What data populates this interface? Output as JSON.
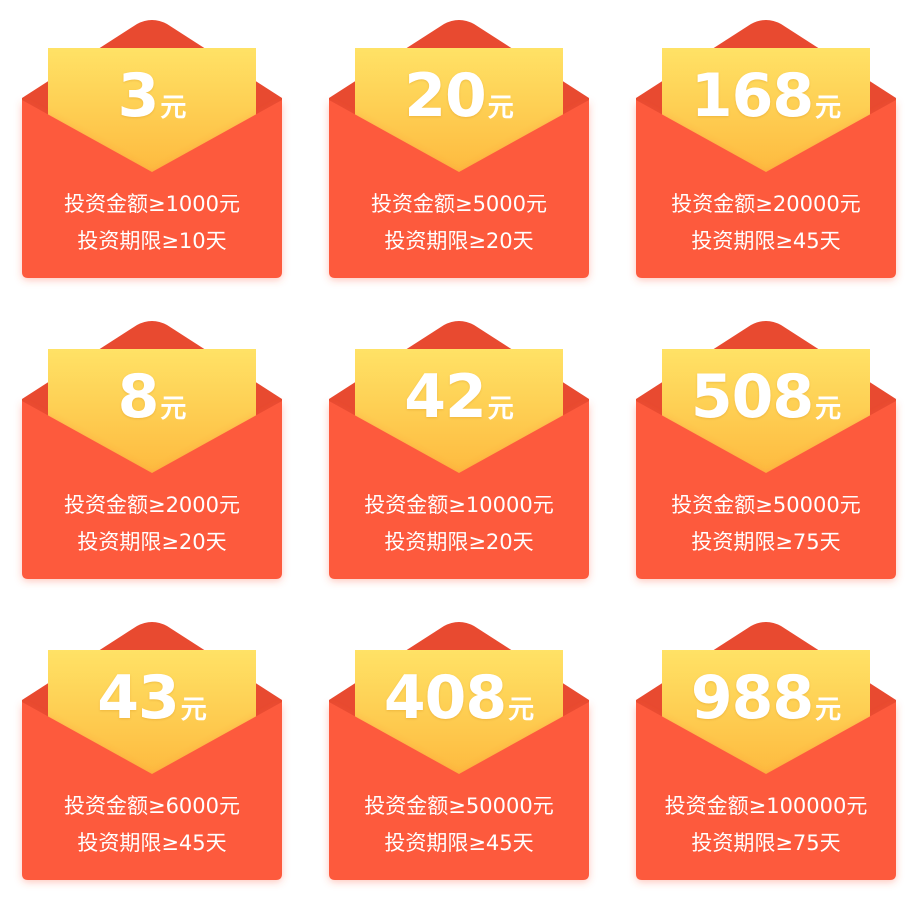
{
  "colors": {
    "envelope_body": "#FD5A3E",
    "envelope_flap_back": "#E84A30",
    "letter_top": "#FFE266",
    "letter_bottom": "#FDB53A",
    "text": "#FFFFFF"
  },
  "packets": [
    {
      "amount": "3",
      "unit": "元",
      "min_amount_label": "投资金额≥1000元",
      "min_term_label": "投资期限≥10天"
    },
    {
      "amount": "20",
      "unit": "元",
      "min_amount_label": "投资金额≥5000元",
      "min_term_label": "投资期限≥20天"
    },
    {
      "amount": "168",
      "unit": "元",
      "min_amount_label": "投资金额≥20000元",
      "min_term_label": "投资期限≥45天"
    },
    {
      "amount": "8",
      "unit": "元",
      "min_amount_label": "投资金额≥2000元",
      "min_term_label": "投资期限≥20天"
    },
    {
      "amount": "42",
      "unit": "元",
      "min_amount_label": "投资金额≥10000元",
      "min_term_label": "投资期限≥20天"
    },
    {
      "amount": "508",
      "unit": "元",
      "min_amount_label": "投资金额≥50000元",
      "min_term_label": "投资期限≥75天"
    },
    {
      "amount": "43",
      "unit": "元",
      "min_amount_label": "投资金额≥6000元",
      "min_term_label": "投资期限≥45天"
    },
    {
      "amount": "408",
      "unit": "元",
      "min_amount_label": "投资金额≥50000元",
      "min_term_label": "投资期限≥45天"
    },
    {
      "amount": "988",
      "unit": "元",
      "min_amount_label": "投资金额≥100000元",
      "min_term_label": "投资期限≥75天"
    }
  ]
}
